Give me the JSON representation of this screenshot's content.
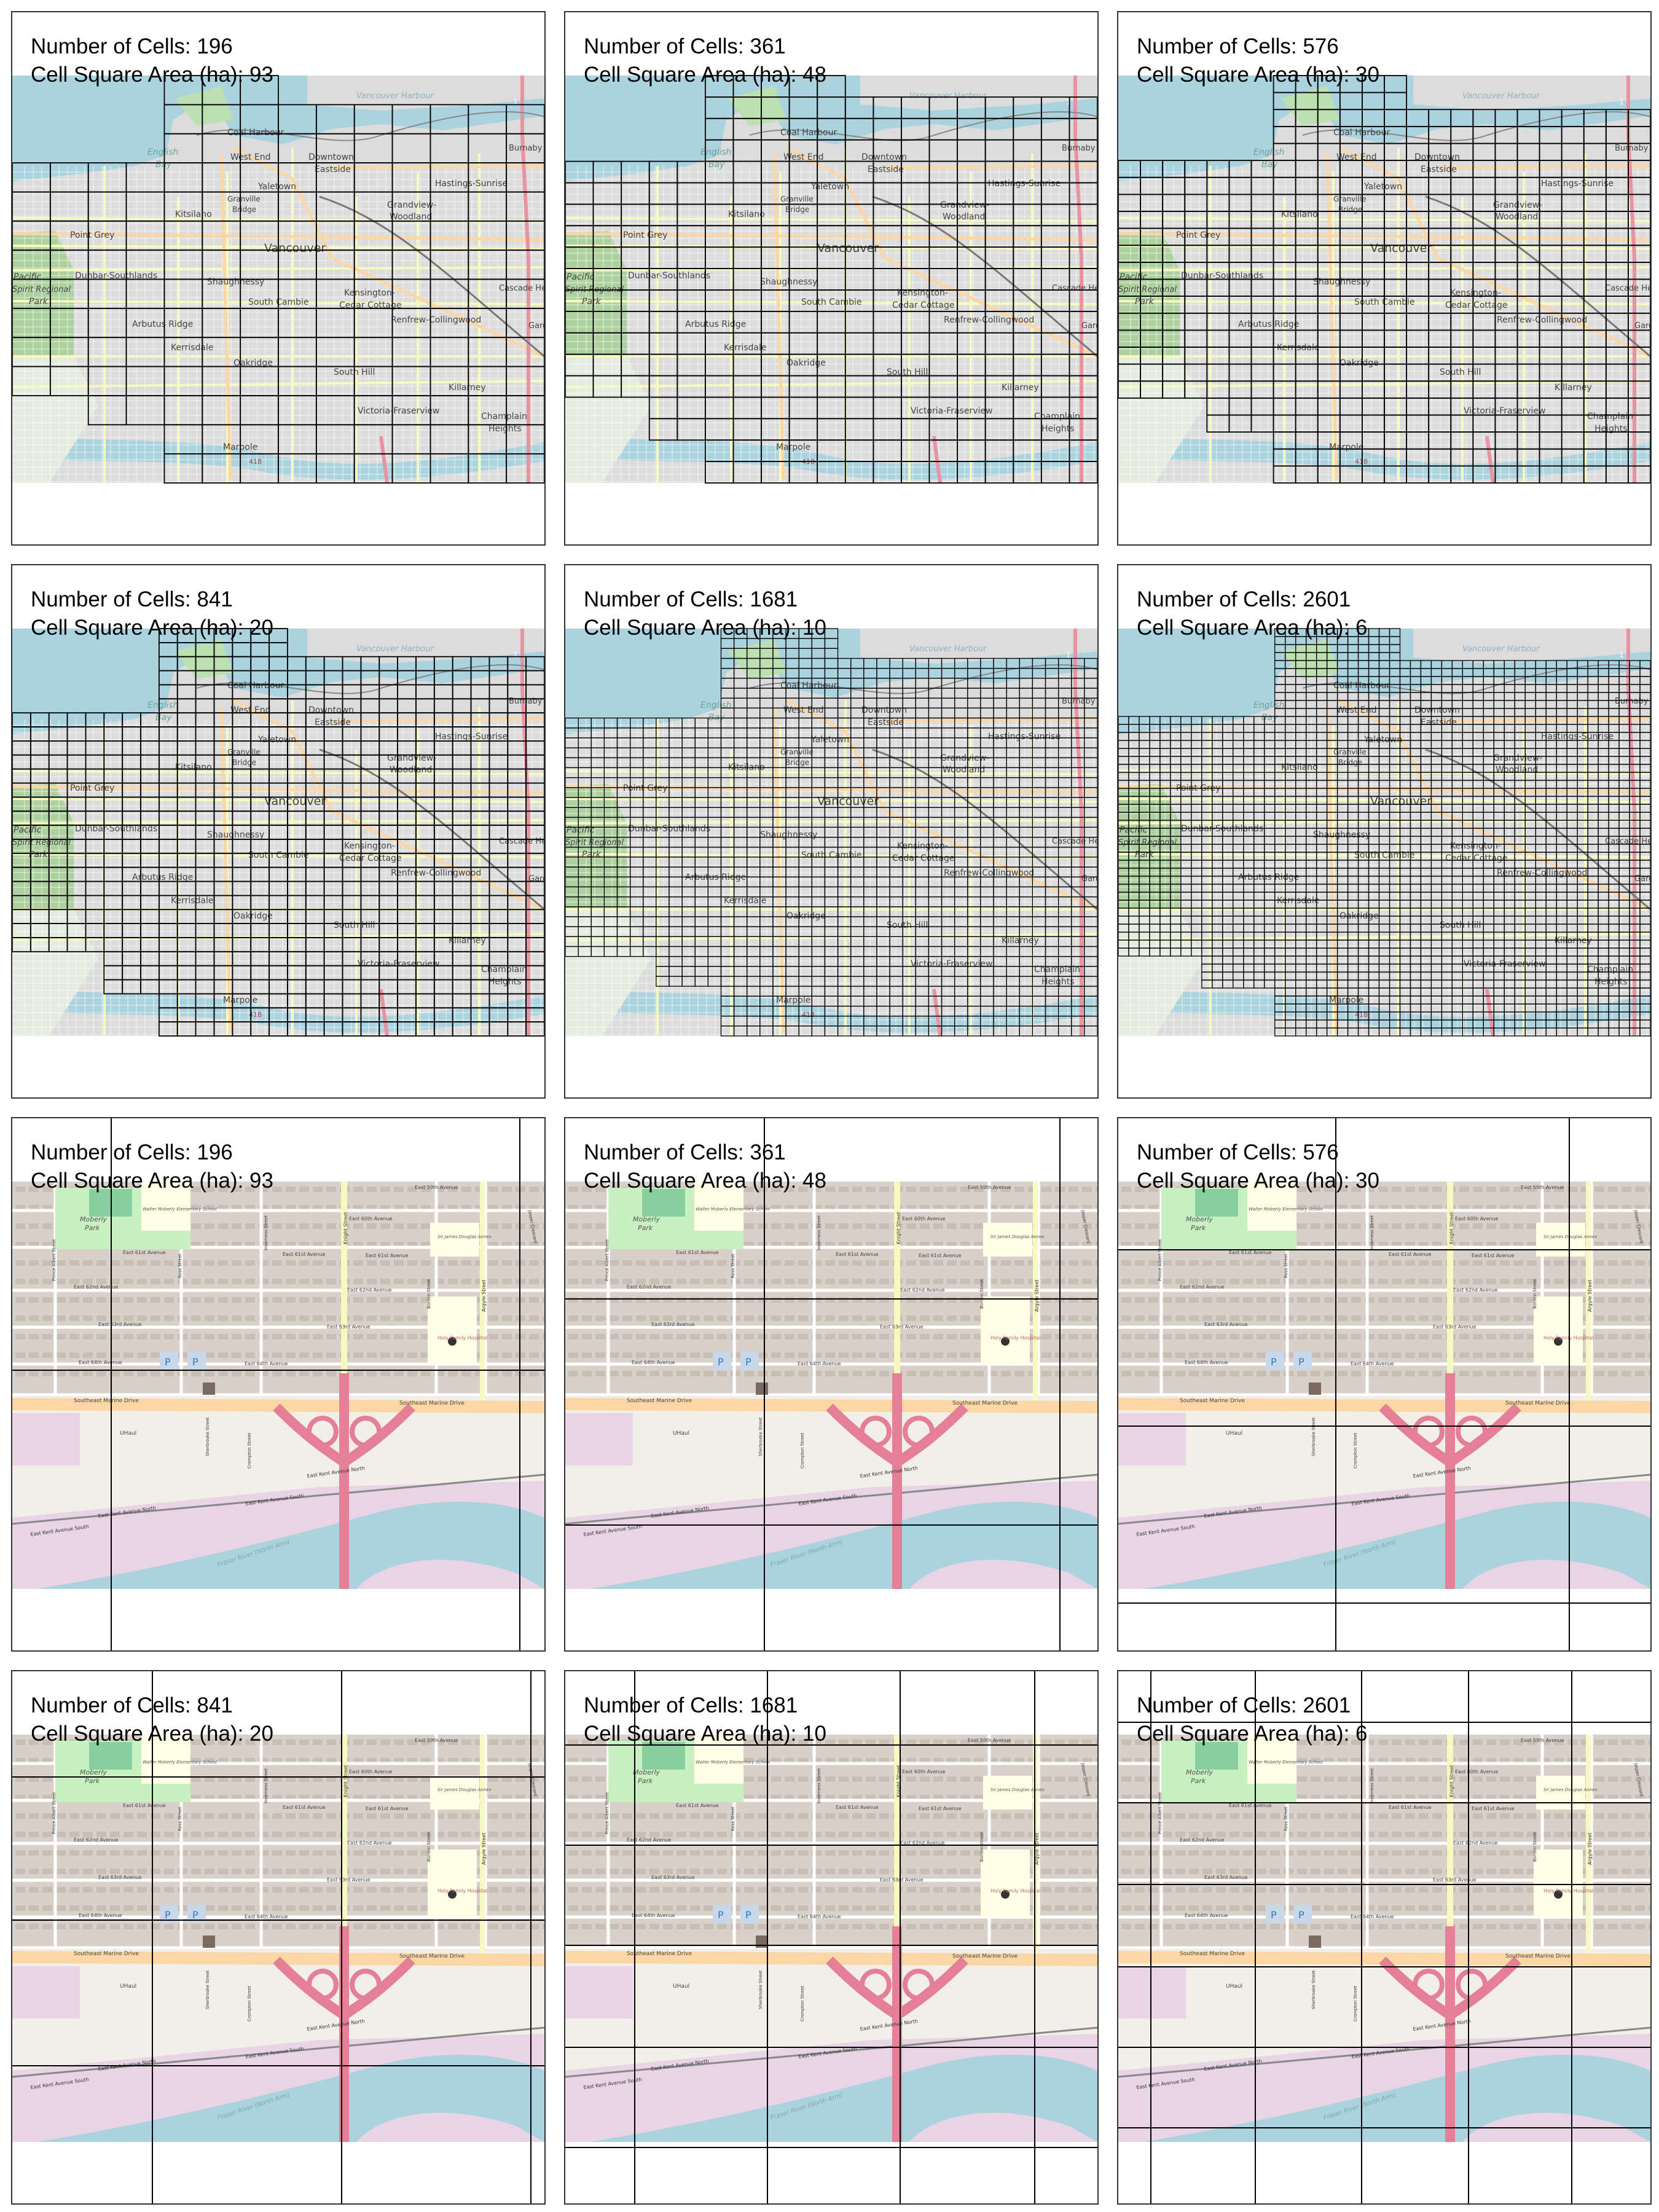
{
  "label_cells": "Number of Cells: ",
  "label_area": "Cell Square Area (ha): ",
  "panels": [
    {
      "map": "vancouver",
      "cells": 196,
      "area_ha": 93
    },
    {
      "map": "vancouver",
      "cells": 361,
      "area_ha": 48
    },
    {
      "map": "vancouver",
      "cells": 576,
      "area_ha": 30
    },
    {
      "map": "vancouver",
      "cells": 841,
      "area_ha": 20
    },
    {
      "map": "vancouver",
      "cells": 1681,
      "area_ha": 10
    },
    {
      "map": "vancouver",
      "cells": 2601,
      "area_ha": 6
    },
    {
      "map": "fraser",
      "cells": 196,
      "area_ha": 93
    },
    {
      "map": "fraser",
      "cells": 361,
      "area_ha": 48
    },
    {
      "map": "fraser",
      "cells": 576,
      "area_ha": 30
    },
    {
      "map": "fraser",
      "cells": 841,
      "area_ha": 20
    },
    {
      "map": "fraser",
      "cells": 1681,
      "area_ha": 10
    },
    {
      "map": "fraser",
      "cells": 2601,
      "area_ha": 6
    }
  ],
  "vancouver_labels": [
    "Vancouver Harbour",
    "Coal Harbour",
    "West End",
    "Downtown",
    "Eastside",
    "English",
    "Bay",
    "Yaletown",
    "Granville",
    "Bridge",
    "Kitsilano",
    "Hastings-Sunrise",
    "Grandview-",
    "Woodland",
    "Point Grey",
    "Vancouver",
    "Burnaby H",
    "Pacific",
    "Spirit Regional",
    "Park",
    "Dunbar-Southlands",
    "Shaughnessy",
    "Kensington-",
    "Cedar Cottage",
    "South Cambie",
    "Cascade Heig",
    "Arbutus Ridge",
    "Renfrew-Collingwood",
    "Garde",
    "Kerrisdale",
    "Oakridge",
    "South Hill",
    "Killarney",
    "Victoria-Fraserview",
    "Champlain",
    "Heights",
    "Marpole",
    "1",
    "418"
  ],
  "fraser_labels": [
    "Moberly",
    "Park",
    "Walter Moberly Elementary School",
    "East 59th Avenue",
    "East 60th Avenue",
    "East 61st Avenue",
    "East 62nd Avenue",
    "East 63rd Avenue",
    "East 64th Avenue",
    "Sir James Douglas Annex",
    "Holy Family Hospital",
    "Knight Street",
    "Argyle Street",
    "Borden Street",
    "Ross Street",
    "Inverness Street",
    "Prince Albert Street",
    "Southeast Marine Drive",
    "UHaul",
    "Sherbrooke Street",
    "Crompton Street",
    "East Kent Avenue North",
    "East Kent Avenue South",
    "Fraser River (North Arm)",
    "Jasper Crescent",
    "P"
  ]
}
